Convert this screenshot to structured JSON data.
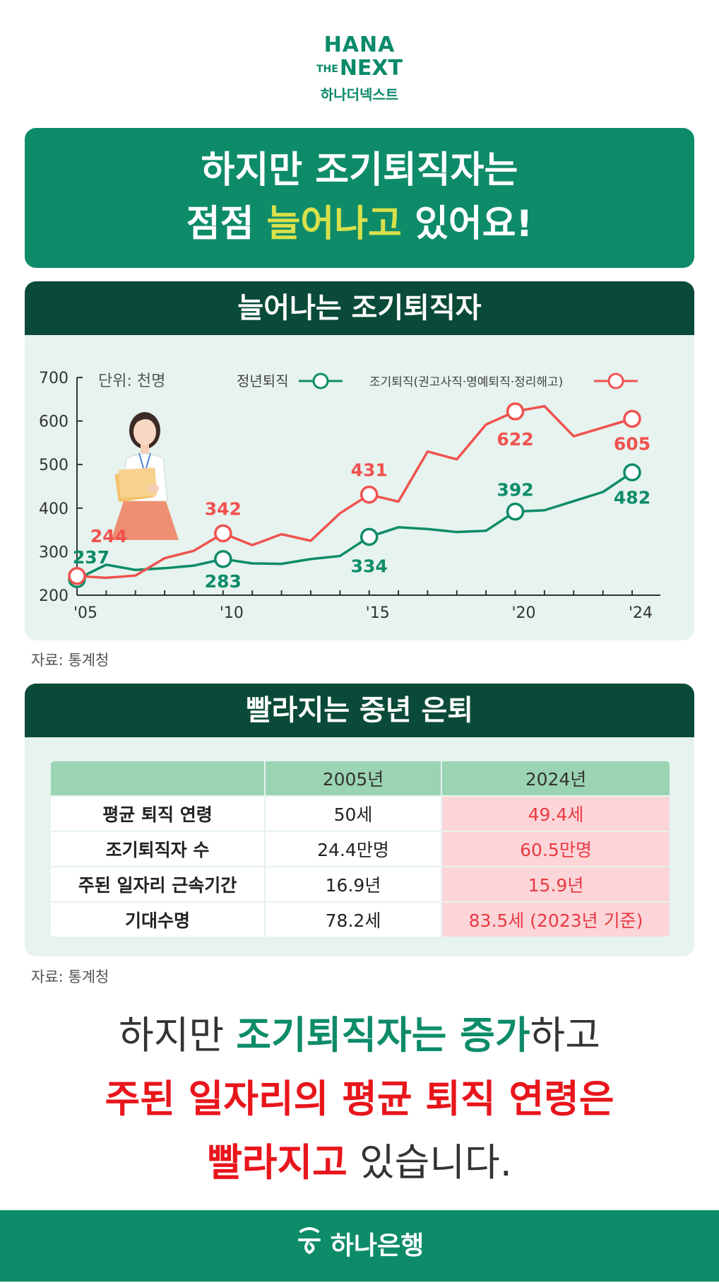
{
  "logo": {
    "line1": "HANA",
    "line2_small": "THE",
    "line2": "NEXT",
    "korean": "하나더넥스트"
  },
  "headline": {
    "line1": "하지만 조기퇴직자는",
    "line2_pre": "점점 ",
    "line2_highlight": "늘어나고",
    "line2_post": " 있어요!"
  },
  "chart_panel": {
    "title": "늘어나는 조기퇴직자",
    "source": "자료: 통계청"
  },
  "chart_data": {
    "type": "line",
    "title": "늘어나는 조기퇴직자",
    "unit_label": "단위: 천명",
    "x": [
      2005,
      2006,
      2007,
      2008,
      2009,
      2010,
      2011,
      2012,
      2013,
      2014,
      2015,
      2016,
      2017,
      2018,
      2019,
      2020,
      2021,
      2022,
      2023,
      2024
    ],
    "x_tick_labels": [
      "'05",
      "'10",
      "'15",
      "'20",
      "'24"
    ],
    "x_tick_values": [
      2005,
      2010,
      2015,
      2020,
      2024
    ],
    "ylim": [
      200,
      700
    ],
    "y_ticks": [
      200,
      300,
      400,
      500,
      600,
      700
    ],
    "legend_position": "top",
    "series": [
      {
        "name": "정년퇴직",
        "color": "#0e8c69",
        "values": [
          237,
          270,
          258,
          262,
          268,
          283,
          273,
          272,
          283,
          290,
          334,
          356,
          352,
          345,
          348,
          392,
          395,
          416,
          437,
          482
        ],
        "labeled_years": [
          2005,
          2010,
          2015,
          2020,
          2024
        ],
        "labels": [
          "237",
          "283",
          "334",
          "392",
          "482"
        ]
      },
      {
        "name": "조기퇴직(권고사직·명예퇴직·정리해고)",
        "color": "#f0524f",
        "values": [
          244,
          240,
          245,
          285,
          302,
          342,
          315,
          340,
          325,
          388,
          431,
          415,
          530,
          512,
          592,
          622,
          634,
          565,
          585,
          605
        ],
        "labeled_years": [
          2005,
          2010,
          2015,
          2020,
          2024
        ],
        "labels": [
          "244",
          "342",
          "431",
          "622",
          "605"
        ]
      }
    ]
  },
  "table_panel": {
    "title": "빨라지는 중년 은퇴",
    "source": "자료: 통계청",
    "headers": [
      "",
      "2005년",
      "2024년"
    ],
    "rows": [
      {
        "label": "평균 퇴직 연령",
        "v2005": "50세",
        "v2024": "49.4세"
      },
      {
        "label": "조기퇴직자 수",
        "v2005": "24.4만명",
        "v2024": "60.5만명"
      },
      {
        "label": "주된 일자리 근속기간",
        "v2005": "16.9년",
        "v2024": "15.9년"
      },
      {
        "label": "기대수명",
        "v2005": "78.2세",
        "v2024": "83.5세 (2023년 기준)"
      }
    ]
  },
  "closing": {
    "l1_a": "하지만 ",
    "l1_b": "조기퇴직자는 증가",
    "l1_c": "하고",
    "l2": "주된 일자리의 평균 퇴직 연령은",
    "l3_a": "빨라지고",
    "l3_b": " 있습니다."
  },
  "footer": {
    "brand": "하나은행"
  },
  "colors": {
    "green": "#0e8c69",
    "dark_green": "#0a4a38",
    "panel_bg": "#e6f3ef",
    "red": "#f0524f",
    "highlight": "#d8e04a"
  }
}
